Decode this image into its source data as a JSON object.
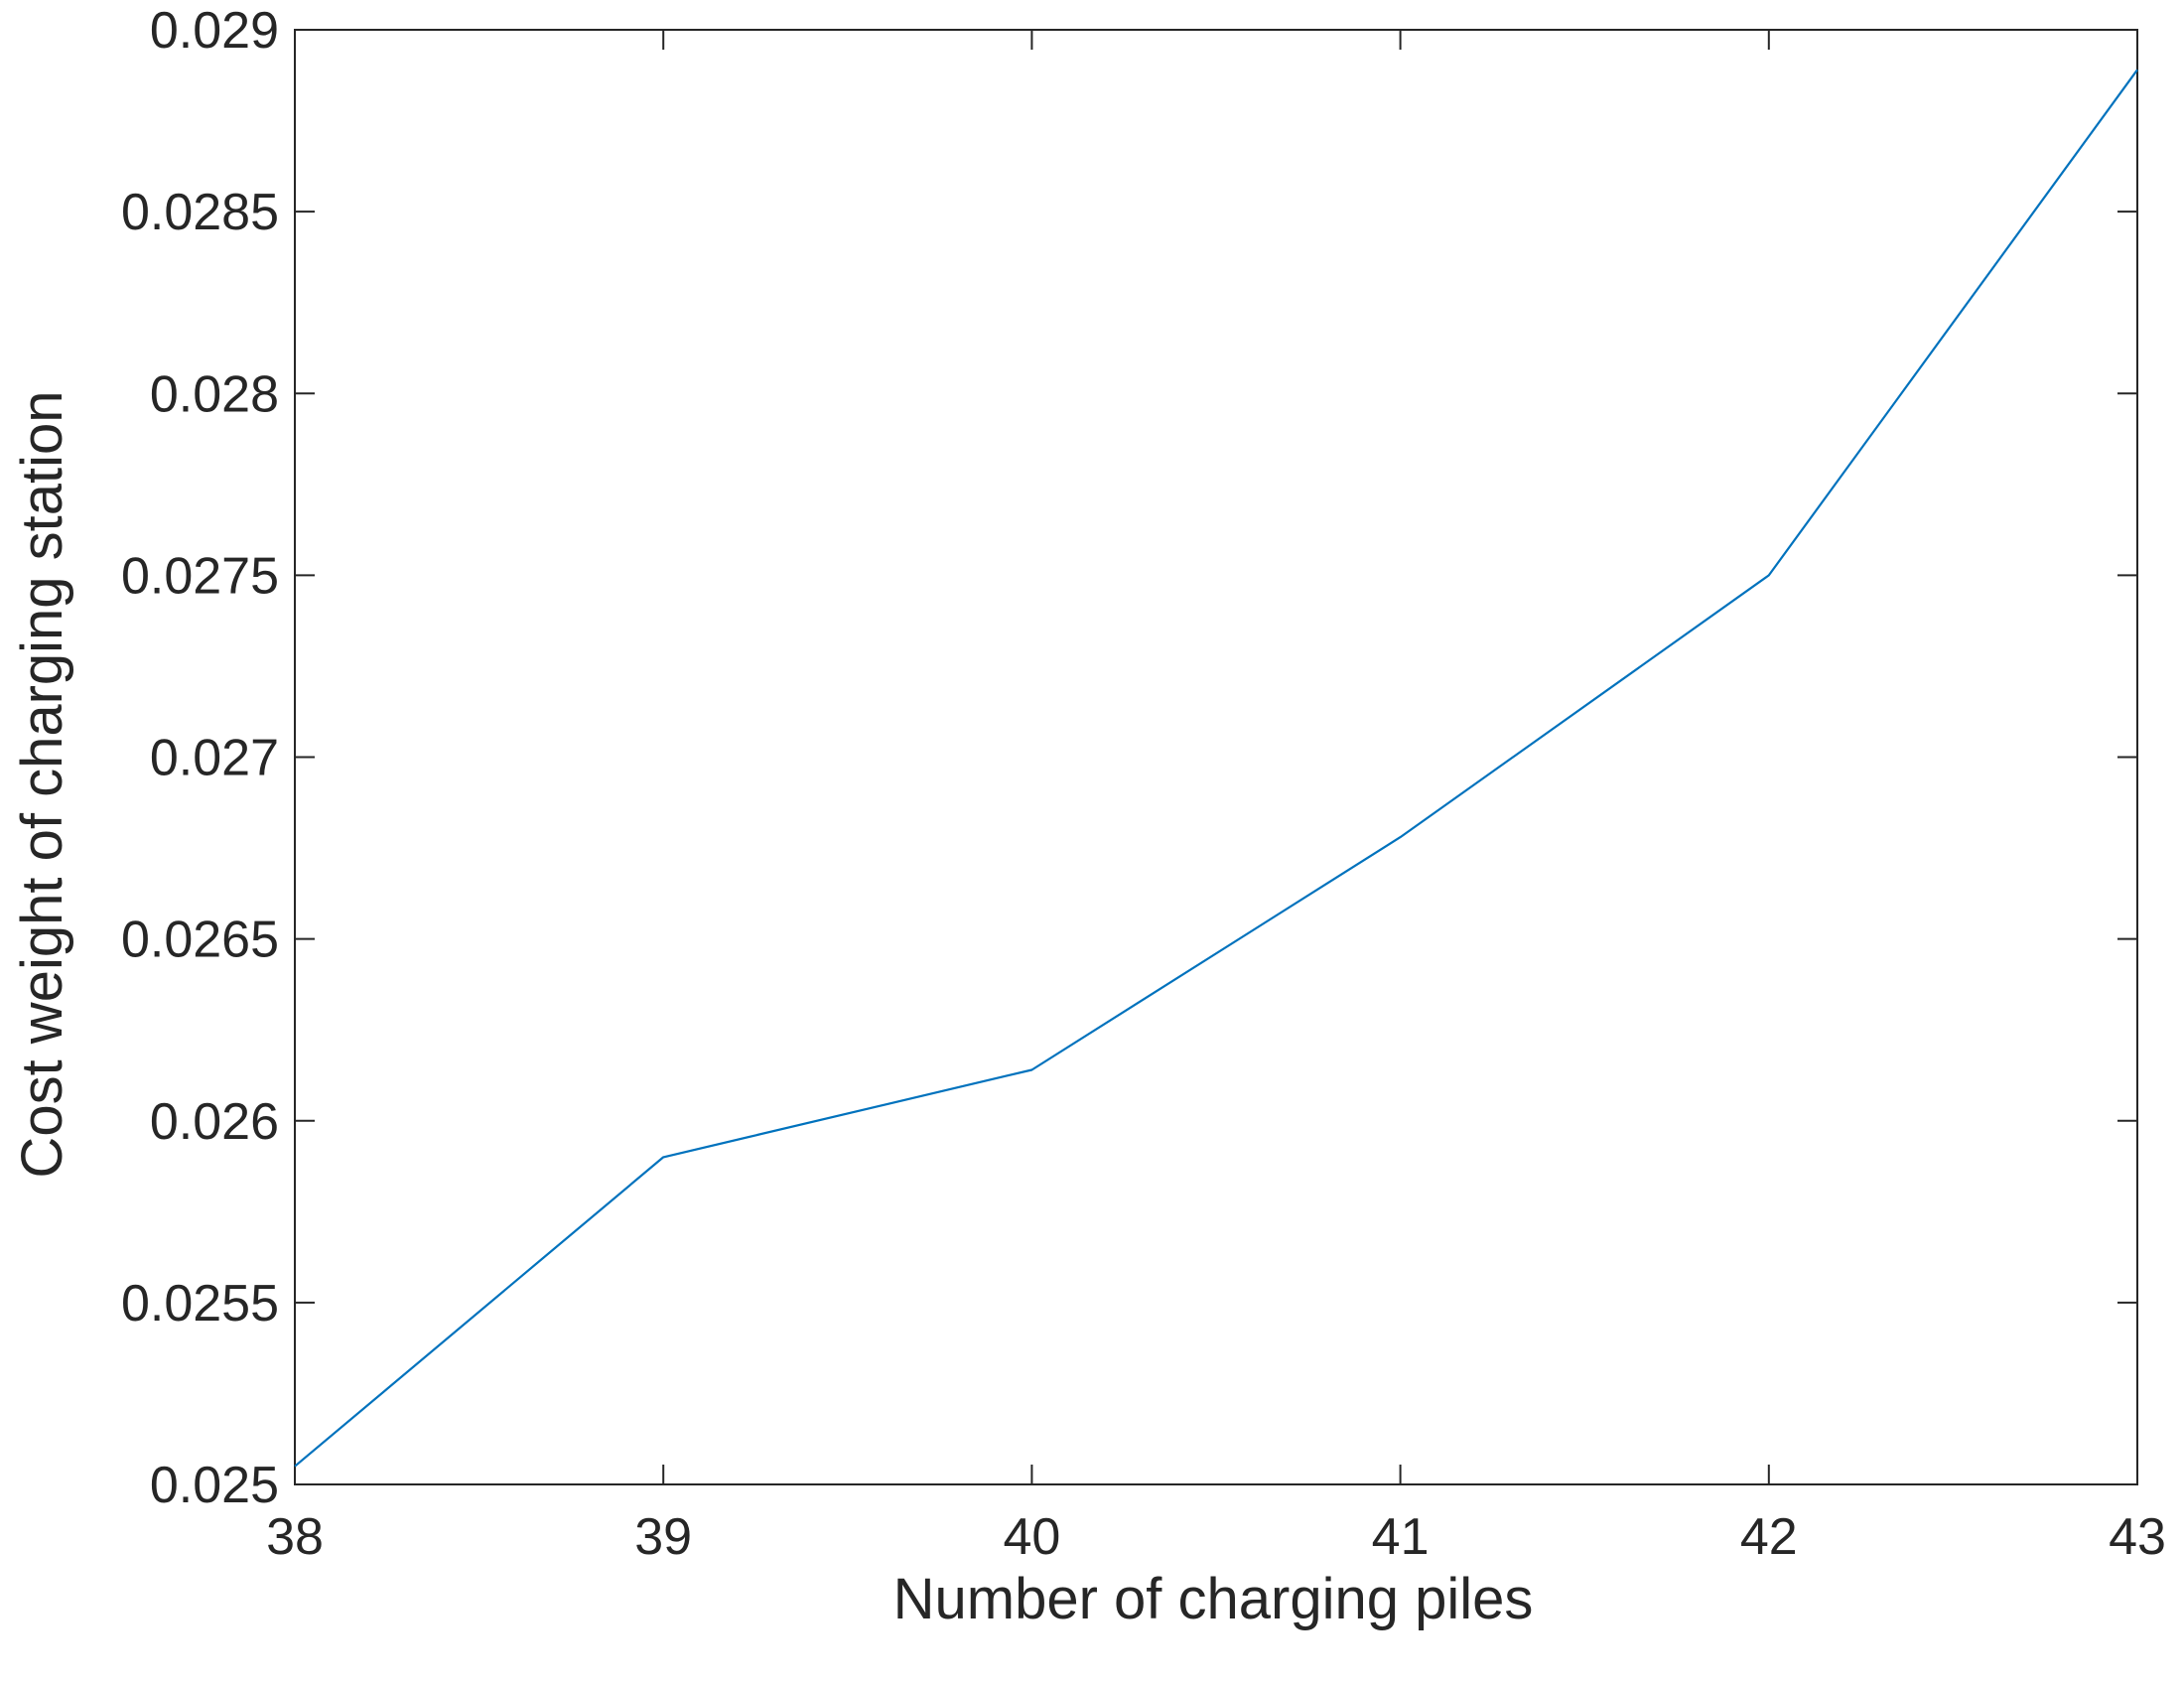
{
  "chart_data": {
    "type": "line",
    "title": "",
    "xlabel": "Number of charging piles",
    "ylabel": "Cost weight of charging station",
    "xlim": [
      38,
      43
    ],
    "ylim": [
      0.025,
      0.029
    ],
    "xticks": [
      38,
      39,
      40,
      41,
      42,
      43
    ],
    "xtick_labels": [
      "38",
      "39",
      "40",
      "41",
      "42",
      "43"
    ],
    "yticks": [
      0.025,
      0.0255,
      0.026,
      0.0265,
      0.027,
      0.0275,
      0.028,
      0.0285,
      0.029
    ],
    "ytick_labels": [
      "0.025",
      "0.0255",
      "0.026",
      "0.0265",
      "0.027",
      "0.0275",
      "0.028",
      "0.0285",
      "0.029"
    ],
    "grid": false,
    "series": [
      {
        "x": [
          38,
          39,
          40,
          41,
          42,
          43
        ],
        "y": [
          0.02505,
          0.0259,
          0.02614,
          0.02678,
          0.0275,
          0.02889
        ],
        "color": "#0072BD"
      }
    ]
  }
}
